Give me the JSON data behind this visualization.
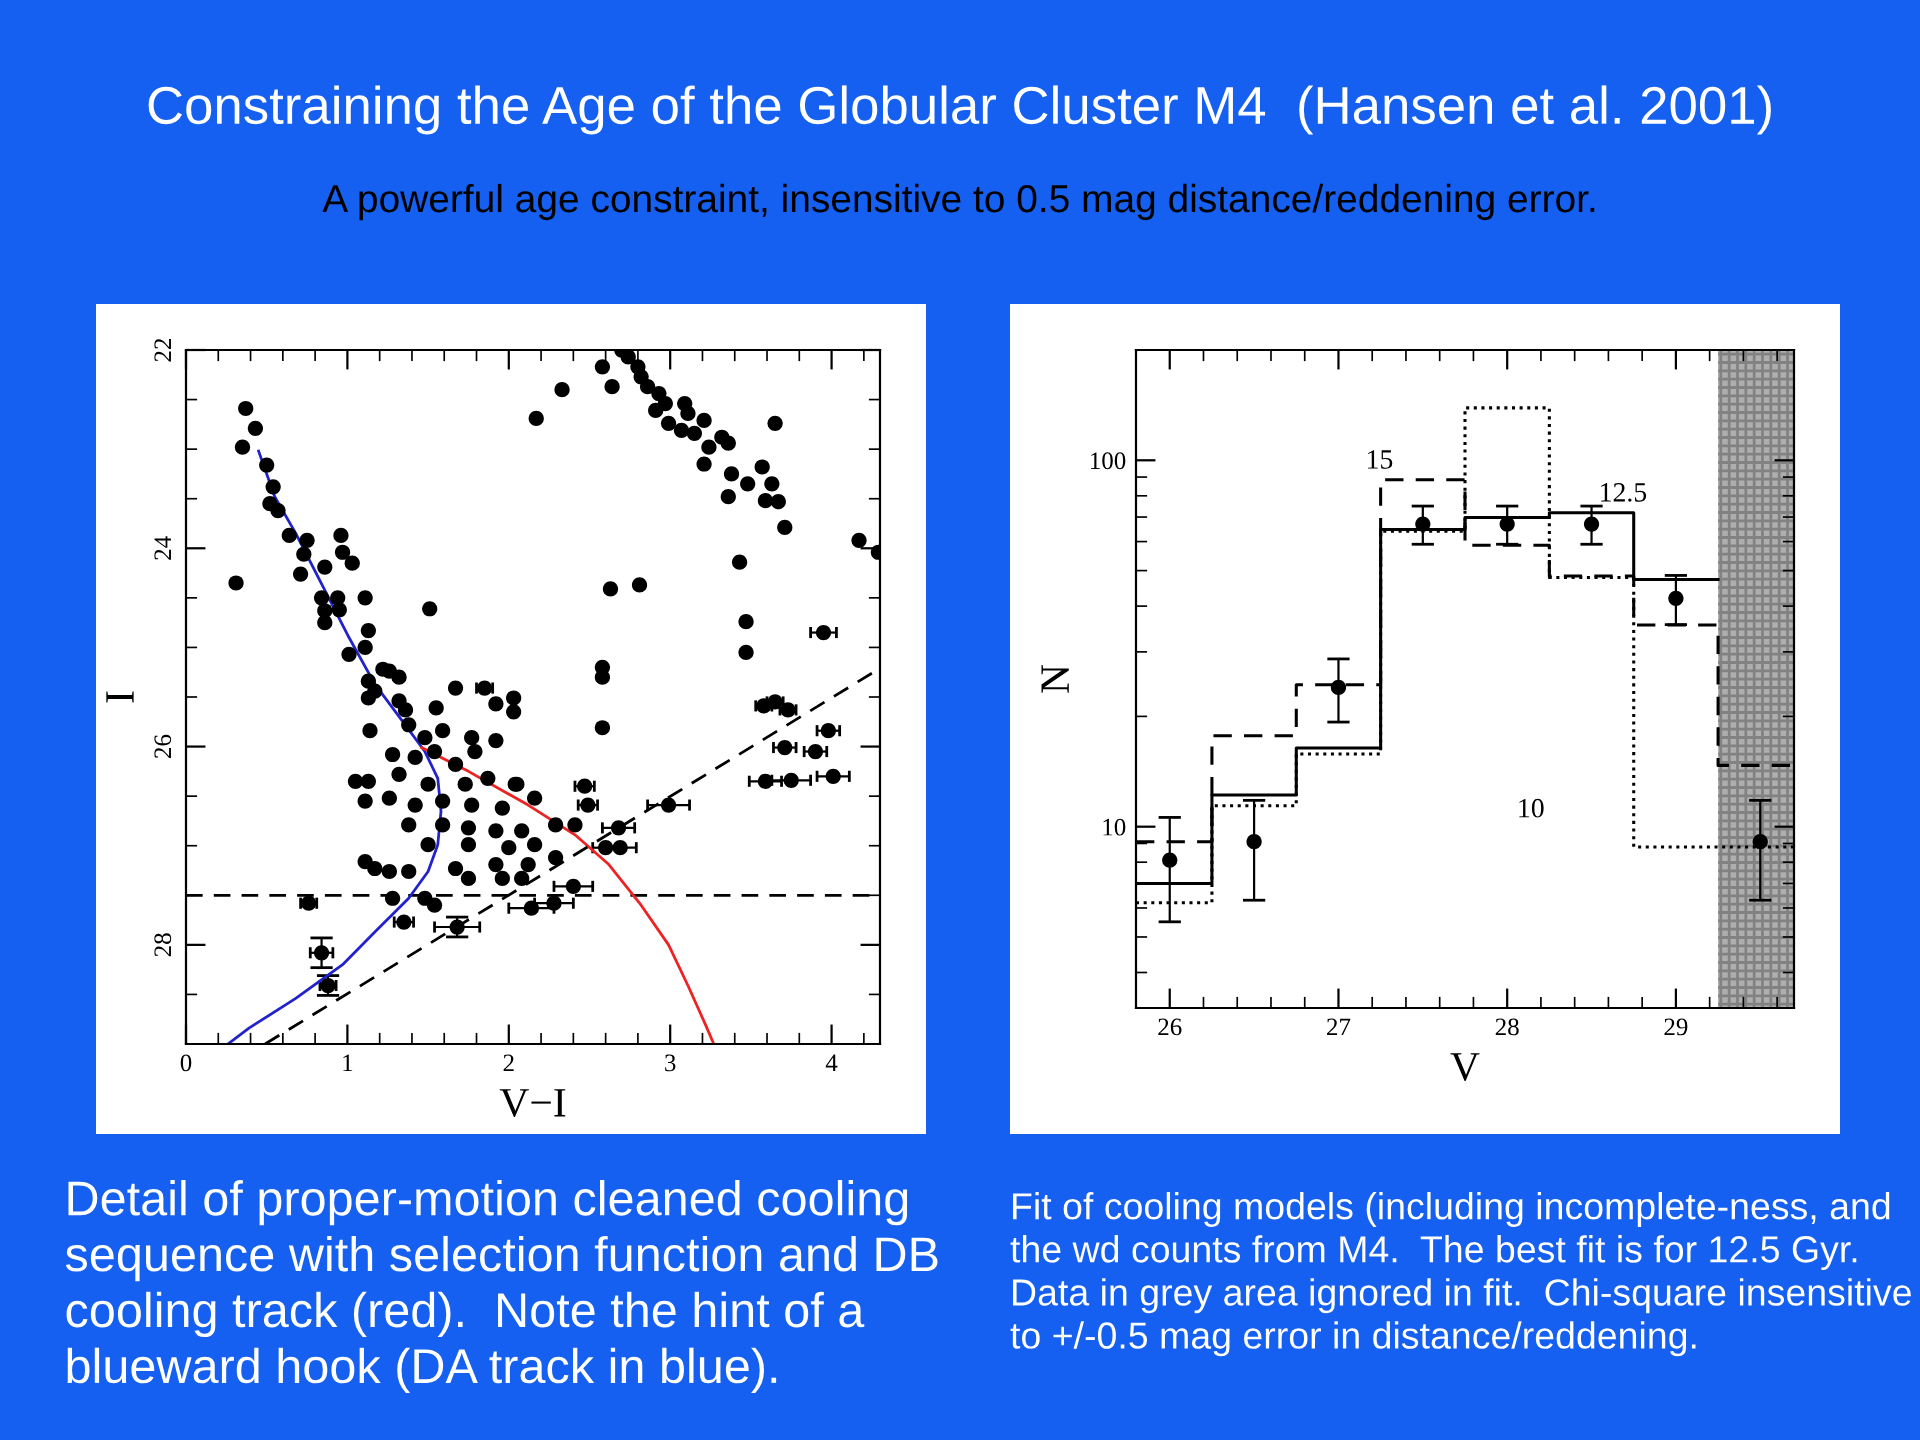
{
  "chart_data": [
    {
      "type": "scatter",
      "title": "Constraining the Age of the Globular Cluster M4  (Hansen et al. 2001)",
      "subtitle": "A powerful age constraint, insensitive to 0.5 mag distance/reddening error.",
      "xlabel": "V−I",
      "ylabel": "I",
      "xlim": [
        0,
        4.3
      ],
      "ylim": [
        29.0,
        22
      ],
      "xticks": [
        0,
        1,
        2,
        3,
        4
      ],
      "yticks": [
        22,
        24,
        26,
        28
      ],
      "grid": false,
      "legend": false,
      "marker": "circle",
      "annotations": [
        "Detail of proper-motion cleaned cooling sequence with selection function and DB cooling track (red).  Note the hint of a blueward hook (DA track in blue)."
      ],
      "ref_lines": [
        {
          "axis": "y",
          "value": 27.5,
          "line_style": "dashed",
          "color": "#000000"
        }
      ],
      "series": [
        {
          "color": "#000000",
          "x": [
            2.58,
            2.7,
            2.74,
            2.8,
            2.82,
            2.86,
            2.93,
            2.97,
            2.91,
            3.09,
            3.11,
            2.99,
            3.07,
            3.15,
            3.21,
            3.32,
            3.36,
            3.24,
            3.21,
            3.38,
            3.48,
            3.36,
            3.57,
            3.63,
            3.59,
            3.67,
            3.65,
            3.71,
            2.33,
            2.17,
            2.64,
            4.17,
            4.29,
            3.43,
            0.37,
            0.43,
            0.35,
            0.5,
            0.54,
            0.52,
            0.57,
            0.64,
            0.75,
            0.73,
            0.71,
            0.31,
            0.86,
            0.96,
            0.97,
            1.03,
            0.84,
            0.94,
            0.86,
            0.95,
            0.86,
            1.11,
            1.13,
            1.51,
            1.01,
            1.11,
            1.22,
            1.26,
            1.32,
            1.13,
            1.17,
            1.13,
            1.32,
            1.36,
            1.67,
            1.55,
            1.14,
            1.38,
            1.48,
            1.59,
            1.77,
            1.92,
            1.28,
            1.42,
            1.54,
            1.67,
            1.79,
            1.05,
            1.13,
            1.32,
            1.5,
            1.73,
            1.87,
            2.04,
            1.26,
            1.42,
            1.59,
            1.77,
            1.96,
            2.16,
            1.11,
            1.38,
            1.59,
            1.75,
            1.92,
            2.08,
            2.29,
            2.41,
            1.5,
            1.75,
            2.0,
            2.16,
            1.11,
            1.17,
            1.26,
            1.38,
            1.67,
            1.92,
            2.12,
            2.29,
            1.75,
            1.96,
            2.08,
            1.28,
            1.48,
            1.54,
            2.47,
            3.71,
            3.9,
            4.01,
            3.75,
            2.81,
            2.58,
            2.58,
            2.58,
            3.47,
            3.47,
            2.63,
            3.58,
            3.65,
            3.73,
            3.98,
            3.59,
            2.99,
            2.68,
            2.6,
            2.69,
            2.49,
            1.85,
            1.92,
            2.03,
            2.03,
            2.05,
            0.76,
            0.84,
            0.88,
            1.35,
            1.68,
            2.14,
            2.28,
            2.4,
            3.95
          ],
          "values": [
            22.17,
            22.0,
            22.07,
            22.17,
            22.27,
            22.37,
            22.44,
            22.54,
            22.61,
            22.54,
            22.64,
            22.74,
            22.81,
            22.84,
            22.71,
            22.88,
            22.94,
            22.98,
            23.15,
            23.25,
            23.35,
            23.48,
            23.18,
            23.35,
            23.52,
            23.53,
            22.74,
            23.79,
            22.4,
            22.69,
            22.37,
            23.92,
            24.04,
            24.14,
            22.59,
            22.79,
            22.98,
            23.16,
            23.38,
            23.55,
            23.62,
            23.87,
            23.92,
            24.06,
            24.26,
            24.35,
            24.19,
            23.87,
            24.04,
            24.15,
            24.5,
            24.5,
            24.63,
            24.62,
            24.75,
            24.5,
            24.83,
            24.61,
            25.07,
            25.0,
            25.22,
            25.24,
            25.3,
            25.34,
            25.44,
            25.51,
            25.54,
            25.63,
            25.41,
            25.61,
            25.84,
            25.78,
            25.91,
            25.84,
            25.91,
            25.94,
            26.08,
            26.11,
            26.05,
            26.18,
            26.05,
            26.35,
            26.35,
            26.28,
            26.38,
            26.38,
            26.32,
            26.38,
            26.52,
            26.59,
            26.55,
            26.59,
            26.62,
            26.52,
            26.55,
            26.79,
            26.79,
            26.82,
            26.85,
            26.85,
            26.79,
            26.79,
            26.99,
            26.99,
            27.02,
            26.99,
            27.16,
            27.23,
            27.26,
            27.26,
            27.23,
            27.19,
            27.19,
            27.12,
            27.33,
            27.33,
            27.33,
            27.53,
            27.53,
            27.6,
            26.4,
            26.01,
            26.05,
            26.3,
            26.34,
            24.37,
            25.81,
            25.3,
            25.2,
            24.74,
            25.05,
            24.41,
            25.59,
            25.55,
            25.63,
            25.84,
            26.35,
            26.59,
            26.82,
            27.02,
            27.02,
            26.59,
            25.41,
            25.57,
            25.51,
            25.65,
            26.38,
            27.58,
            28.08,
            28.41,
            27.77,
            27.82,
            27.63,
            27.58,
            27.41,
            24.85
          ],
          "xerrors": [
            null,
            null,
            null,
            null,
            null,
            null,
            null,
            null,
            null,
            null,
            null,
            null,
            null,
            null,
            null,
            null,
            null,
            null,
            null,
            null,
            null,
            null,
            null,
            null,
            null,
            null,
            null,
            null,
            null,
            null,
            null,
            null,
            null,
            null,
            null,
            null,
            null,
            null,
            null,
            null,
            null,
            null,
            null,
            null,
            null,
            null,
            null,
            null,
            null,
            null,
            null,
            null,
            null,
            null,
            null,
            null,
            null,
            null,
            null,
            null,
            null,
            null,
            null,
            null,
            null,
            null,
            null,
            null,
            null,
            null,
            null,
            null,
            null,
            null,
            null,
            null,
            null,
            null,
            null,
            null,
            null,
            null,
            null,
            null,
            null,
            null,
            null,
            null,
            null,
            null,
            null,
            null,
            null,
            null,
            null,
            null,
            null,
            null,
            null,
            null,
            null,
            null,
            null,
            null,
            null,
            null,
            null,
            null,
            null,
            null,
            null,
            null,
            null,
            null,
            null,
            null,
            null,
            null,
            null,
            null,
            0.06,
            0.07,
            0.07,
            0.1,
            0.12,
            null,
            null,
            null,
            null,
            null,
            null,
            null,
            0.05,
            0.05,
            0.05,
            0.07,
            0.1,
            0.13,
            0.1,
            0.08,
            0.1,
            0.06,
            0.05,
            null,
            null,
            null,
            null,
            0.05,
            0.07,
            0.05,
            0.06,
            0.14,
            0.14,
            0.12,
            0.12,
            0.08
          ],
          "errors": [
            null,
            null,
            null,
            null,
            null,
            null,
            null,
            null,
            null,
            null,
            null,
            null,
            null,
            null,
            null,
            null,
            null,
            null,
            null,
            null,
            null,
            null,
            null,
            null,
            null,
            null,
            null,
            null,
            null,
            null,
            null,
            null,
            null,
            null,
            null,
            null,
            null,
            null,
            null,
            null,
            null,
            null,
            null,
            null,
            null,
            null,
            null,
            null,
            null,
            null,
            null,
            null,
            null,
            null,
            null,
            null,
            null,
            null,
            null,
            null,
            null,
            null,
            null,
            null,
            null,
            null,
            null,
            null,
            null,
            null,
            null,
            null,
            null,
            null,
            null,
            null,
            null,
            null,
            null,
            null,
            null,
            null,
            null,
            null,
            null,
            null,
            null,
            null,
            null,
            null,
            null,
            null,
            null,
            null,
            null,
            null,
            null,
            null,
            null,
            null,
            null,
            null,
            null,
            null,
            null,
            null,
            null,
            null,
            null,
            null,
            null,
            null,
            null,
            null,
            null,
            null,
            null,
            null,
            null,
            null,
            null,
            null,
            null,
            null,
            null,
            null,
            null,
            null,
            null,
            null,
            null,
            null,
            null,
            null,
            null,
            null,
            null,
            null,
            null,
            null,
            null,
            null,
            null,
            null,
            null,
            null,
            null,
            null,
            0.15,
            0.1,
            null,
            0.1,
            null,
            null,
            null,
            null
          ]
        },
        {
          "type": "line",
          "color": "#2222cc",
          "line_style": "solid",
          "marker": "none",
          "x": [
            0.45,
            0.55,
            0.68,
            0.84,
            1.01,
            1.17,
            1.34,
            1.48,
            1.56,
            1.58,
            1.56,
            1.5,
            1.38,
            1.17,
            0.97,
            0.68,
            0.39,
            0.26
          ],
          "values": [
            23.02,
            23.48,
            23.85,
            24.36,
            24.9,
            25.37,
            25.74,
            26.05,
            26.32,
            26.65,
            26.99,
            27.26,
            27.53,
            27.87,
            28.2,
            28.54,
            28.84,
            29.0
          ]
        },
        {
          "type": "line",
          "color": "#ee2222",
          "line_style": "solid",
          "marker": "none",
          "x": [
            1.46,
            1.75,
            2.12,
            2.41,
            2.62,
            2.82,
            2.99,
            3.11,
            3.22,
            3.27
          ],
          "values": [
            26.01,
            26.25,
            26.59,
            26.89,
            27.19,
            27.6,
            28.0,
            28.41,
            28.81,
            29.0
          ]
        },
        {
          "type": "line",
          "color": "#000000",
          "line_style": "dashed",
          "marker": "none",
          "x": [
            0.49,
            4.29
          ],
          "values": [
            29.0,
            25.22
          ]
        }
      ]
    },
    {
      "type": "step",
      "xlabel": "V",
      "ylabel": "N",
      "log": "y",
      "xlim": [
        25.8,
        29.7
      ],
      "ylim": [
        3.2,
        200
      ],
      "xticks": [
        26,
        27,
        28,
        29
      ],
      "yticks": [
        10,
        100
      ],
      "grid": false,
      "legend": false,
      "annotations": [
        "Fit of cooling models (including incomplete-ness, and the wd counts from M4.  The best fit is for 12.5 Gyr.  Data in grey area ignored in fit.  Chi-square insensitive to +/-0.5 mag error in distance/reddening.",
        "15",
        "12.5",
        "10"
      ],
      "bands": [
        {
          "axis": "x",
          "from": 29.25,
          "to": 29.7,
          "color": "#9a9a9a"
        }
      ],
      "series": [
        {
          "color": "#000000",
          "line_style": "solid",
          "marker": "none",
          "x": [
            25.8,
            26.25,
            26.75,
            27.25,
            27.75,
            28.25,
            28.75,
            29.25
          ],
          "values": [
            7.0,
            12.2,
            16.4,
            64.7,
            69.8,
            71.9,
            47.3,
            47.3
          ]
        },
        {
          "color": "#000000",
          "line_style": "dashed",
          "marker": "none",
          "x": [
            25.8,
            26.25,
            26.75,
            27.25,
            27.75,
            28.25,
            28.75,
            29.25,
            29.7
          ],
          "values": [
            9.1,
            17.7,
            24.4,
            88.5,
            58.6,
            48.3,
            35.5,
            14.7,
            14.7
          ]
        },
        {
          "color": "#000000",
          "line_style": "dotted",
          "marker": "none",
          "x": [
            25.8,
            26.25,
            26.75,
            27.25,
            27.75,
            28.25,
            28.75,
            29.25,
            29.7
          ],
          "values": [
            6.2,
            11.4,
            15.8,
            64,
            139,
            47.9,
            8.8,
            8.8,
            8.8
          ]
        },
        {
          "type": "scatter",
          "color": "#000000",
          "marker": "circle",
          "x": [
            26,
            26.5,
            27,
            27.5,
            28,
            28.5,
            29,
            29.5
          ],
          "values": [
            8.1,
            9.1,
            24,
            67,
            67,
            67,
            42,
            9.1
          ],
          "errors": [
            [
              5.5,
              10.6
            ],
            [
              6.3,
              11.8
            ],
            [
              19.3,
              28.7
            ],
            [
              59,
              75
            ],
            [
              59,
              75
            ],
            [
              59,
              75
            ],
            [
              35.6,
              48.5
            ],
            [
              6.3,
              11.8
            ]
          ]
        }
      ]
    }
  ]
}
